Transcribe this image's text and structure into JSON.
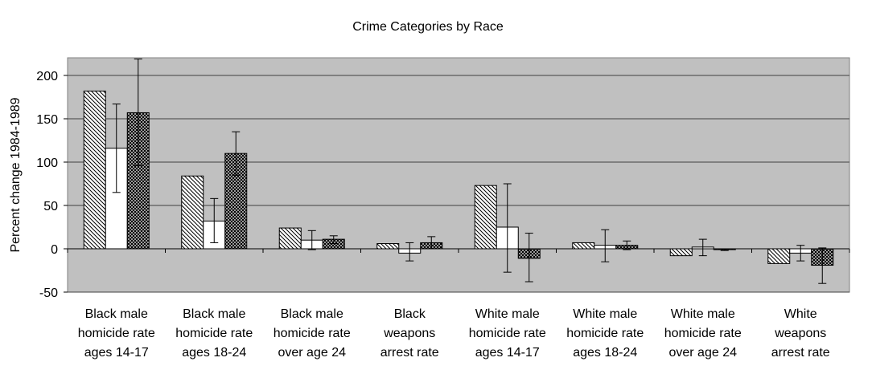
{
  "chart_data": {
    "type": "bar",
    "title": "Crime Categories by Race",
    "ylabel": "Percent change 1984-1989",
    "xlabel": "",
    "ylim": [
      -50,
      220
    ],
    "yticks": [
      200,
      150,
      100,
      50,
      0,
      -50
    ],
    "grid": true,
    "legend": "none",
    "categories": [
      [
        "Black male",
        "homicide rate",
        "ages 14-17"
      ],
      [
        "Black male",
        "homicide rate",
        "ages 18-24"
      ],
      [
        "Black male",
        "homicide rate",
        "over age 24"
      ],
      [
        "Black",
        "weapons",
        "arrest rate"
      ],
      [
        "White male",
        "homicide rate",
        "ages 14-17"
      ],
      [
        "White male",
        "homicide rate",
        "ages 18-24"
      ],
      [
        "White male",
        "homicide rate",
        "over age 24"
      ],
      [
        "White",
        "weapons",
        "arrest rate"
      ]
    ],
    "series": [
      {
        "pattern": "diagonal-hatch",
        "values": [
          182,
          84,
          24,
          6,
          73,
          7,
          -8,
          -17
        ]
      },
      {
        "pattern": "white",
        "values": [
          116,
          32,
          10,
          -5,
          25,
          4,
          2,
          -5
        ],
        "error": [
          [
            65,
            167
          ],
          [
            7,
            58
          ],
          [
            -1,
            21
          ],
          [
            -14,
            7
          ],
          [
            -27,
            75
          ],
          [
            -15,
            22
          ],
          [
            -8,
            11
          ],
          [
            -14,
            4
          ]
        ]
      },
      {
        "pattern": "crosshatch",
        "values": [
          157,
          110,
          11,
          7,
          -11,
          4,
          -1,
          -19
        ],
        "error": [
          [
            96,
            219
          ],
          [
            85,
            135
          ],
          [
            6,
            15
          ],
          [
            0,
            14
          ],
          [
            -38,
            18
          ],
          [
            -1,
            9
          ],
          [
            -2,
            0
          ],
          [
            -40,
            1
          ]
        ]
      }
    ]
  }
}
